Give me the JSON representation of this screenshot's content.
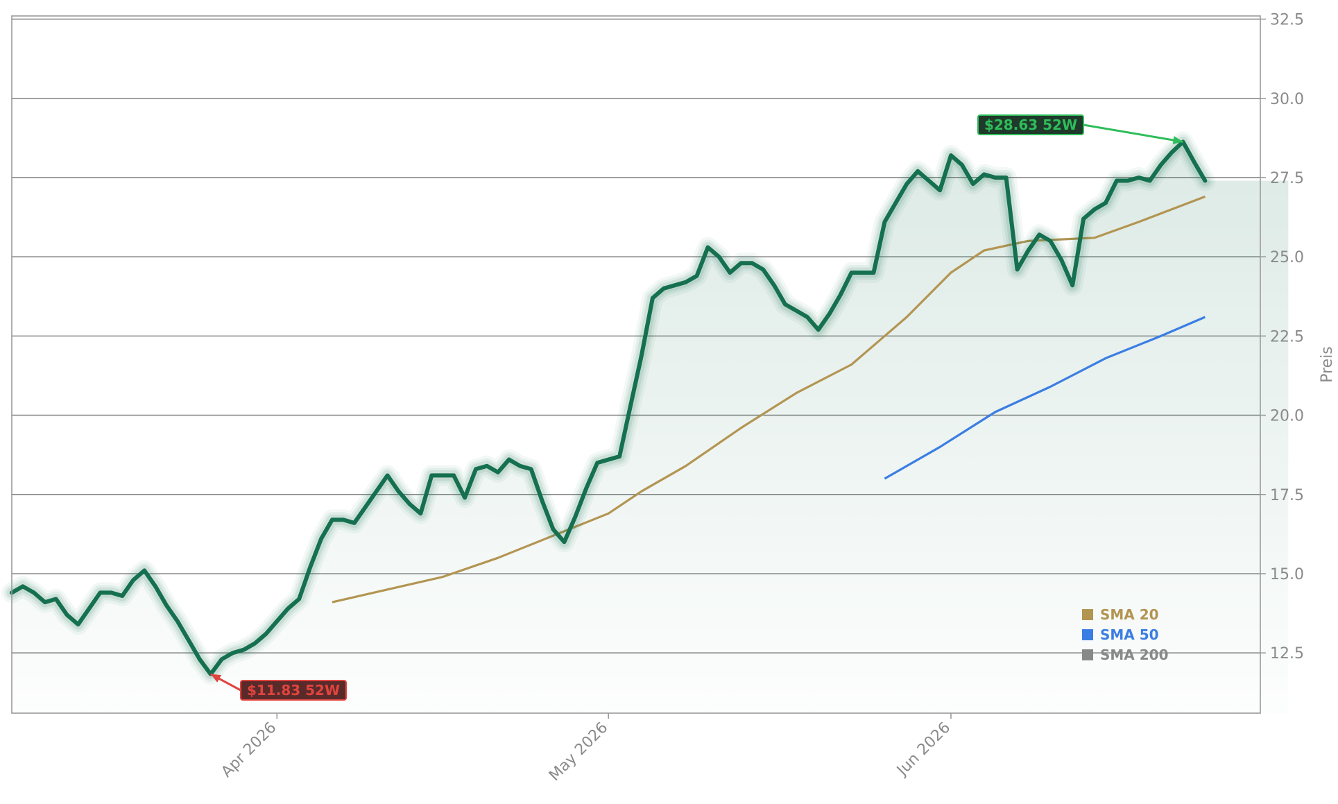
{
  "chart_data": {
    "type": "line",
    "ylabel": "Preis",
    "ylim": [
      10.6,
      32.6
    ],
    "xlim": [
      "2026-03-08",
      "2026-06-29"
    ],
    "y_ticks": [
      12.5,
      15.0,
      17.5,
      20.0,
      22.5,
      25.0,
      27.5,
      30.0,
      32.5
    ],
    "y_tick_labels": [
      "12.5",
      "15.0",
      "17.5",
      "20.0",
      "22.5",
      "25.0",
      "27.5",
      "30.0",
      "32.5"
    ],
    "x_ticks": [
      "2026-04-01",
      "2026-05-01",
      "2026-06-01"
    ],
    "x_tick_labels": [
      "Apr 2026",
      "May 2026",
      "Jun 2026"
    ],
    "grid": "horizontal",
    "legend_position": "bottom-right",
    "colors": {
      "price": "#15704f",
      "sma20": "#b39552",
      "sma50": "#3b7ee3",
      "sma200": "#888888",
      "high": "#2ebd5a",
      "low": "#e0443e"
    },
    "price_series": {
      "x": [
        "2026-03-08",
        "2026-03-09",
        "2026-03-10",
        "2026-03-11",
        "2026-03-12",
        "2026-03-13",
        "2026-03-14",
        "2026-03-15",
        "2026-03-16",
        "2026-03-17",
        "2026-03-18",
        "2026-03-19",
        "2026-03-20",
        "2026-03-21",
        "2026-03-22",
        "2026-03-23",
        "2026-03-24",
        "2026-03-25",
        "2026-03-26",
        "2026-03-27",
        "2026-03-28",
        "2026-03-29",
        "2026-03-30",
        "2026-03-31",
        "2026-04-01",
        "2026-04-02",
        "2026-04-03",
        "2026-04-04",
        "2026-04-05",
        "2026-04-06",
        "2026-04-07",
        "2026-04-08",
        "2026-04-09",
        "2026-04-10",
        "2026-04-11",
        "2026-04-12",
        "2026-04-13",
        "2026-04-14",
        "2026-04-15",
        "2026-04-16",
        "2026-04-17",
        "2026-04-18",
        "2026-04-19",
        "2026-04-20",
        "2026-04-21",
        "2026-04-22",
        "2026-04-23",
        "2026-04-24",
        "2026-04-25",
        "2026-04-26",
        "2026-04-27",
        "2026-04-28",
        "2026-04-29",
        "2026-04-30",
        "2026-05-01",
        "2026-05-02",
        "2026-05-03",
        "2026-05-04",
        "2026-05-05",
        "2026-05-06",
        "2026-05-07",
        "2026-05-08",
        "2026-05-09",
        "2026-05-10",
        "2026-05-11",
        "2026-05-12",
        "2026-05-13",
        "2026-05-14",
        "2026-05-15",
        "2026-05-16",
        "2026-05-17",
        "2026-05-18",
        "2026-05-19",
        "2026-05-20",
        "2026-05-21",
        "2026-05-22",
        "2026-05-23",
        "2026-05-24",
        "2026-05-25",
        "2026-05-26",
        "2026-05-27",
        "2026-05-28",
        "2026-05-29",
        "2026-05-30",
        "2026-05-31",
        "2026-06-01",
        "2026-06-02",
        "2026-06-03",
        "2026-06-04",
        "2026-06-05",
        "2026-06-06",
        "2026-06-07",
        "2026-06-08",
        "2026-06-09",
        "2026-06-10",
        "2026-06-11",
        "2026-06-12",
        "2026-06-13",
        "2026-06-14",
        "2026-06-15",
        "2026-06-16",
        "2026-06-17",
        "2026-06-18",
        "2026-06-19",
        "2026-06-20",
        "2026-06-21",
        "2026-06-22",
        "2026-06-23",
        "2026-06-24"
      ],
      "values": [
        14.4,
        14.6,
        14.4,
        14.1,
        14.2,
        13.7,
        13.4,
        13.9,
        14.4,
        14.4,
        14.3,
        14.8,
        15.1,
        14.6,
        14.0,
        13.5,
        12.9,
        12.3,
        11.83,
        12.3,
        12.5,
        12.6,
        12.8,
        13.1,
        13.5,
        13.9,
        14.2,
        15.2,
        16.1,
        16.7,
        16.7,
        16.6,
        17.1,
        17.6,
        18.1,
        17.6,
        17.2,
        16.9,
        18.1,
        18.1,
        18.1,
        17.4,
        18.3,
        18.4,
        18.2,
        18.6,
        18.4,
        18.3,
        17.3,
        16.4,
        16.0,
        16.8,
        17.7,
        18.5,
        18.6,
        18.7,
        20.3,
        21.9,
        23.7,
        24.0,
        24.1,
        24.2,
        24.4,
        25.3,
        25.0,
        24.5,
        24.8,
        24.8,
        24.6,
        24.1,
        23.5,
        23.3,
        23.1,
        22.7,
        23.2,
        23.8,
        24.5,
        24.5,
        24.5,
        26.1,
        26.7,
        27.3,
        27.7,
        27.4,
        27.1,
        28.2,
        27.9,
        27.3,
        27.6,
        27.5,
        27.5,
        24.6,
        25.2,
        25.7,
        25.5,
        24.9,
        24.1,
        26.2,
        26.5,
        26.7,
        27.4,
        27.4,
        27.5,
        27.4,
        27.9,
        28.3,
        28.63,
        28.0,
        27.4
      ]
    },
    "sma20": {
      "x": [
        "2026-04-06",
        "2026-04-11",
        "2026-04-16",
        "2026-04-21",
        "2026-04-26",
        "2026-05-01",
        "2026-05-04",
        "2026-05-08",
        "2026-05-13",
        "2026-05-18",
        "2026-05-23",
        "2026-05-28",
        "2026-06-01",
        "2026-06-04",
        "2026-06-08",
        "2026-06-14",
        "2026-06-18",
        "2026-06-24"
      ],
      "values": [
        14.1,
        14.5,
        14.9,
        15.5,
        16.2,
        16.9,
        17.6,
        18.4,
        19.6,
        20.7,
        21.6,
        23.1,
        24.5,
        25.2,
        25.5,
        25.6,
        26.1,
        26.9
      ]
    },
    "sma50": {
      "x": [
        "2026-05-26",
        "2026-05-31",
        "2026-06-05",
        "2026-06-10",
        "2026-06-15",
        "2026-06-20",
        "2026-06-24"
      ],
      "values": [
        18.0,
        19.0,
        20.1,
        20.9,
        21.8,
        22.5,
        23.1
      ]
    },
    "annotations": [
      {
        "label": "$28.63 52W",
        "kind": "high",
        "x": "2026-06-22",
        "y": 28.63
      },
      {
        "label": "$11.83 52W",
        "kind": "low",
        "x": "2026-03-26",
        "y": 11.83
      }
    ],
    "legend": [
      {
        "label": "SMA 20",
        "color_key": "sma20"
      },
      {
        "label": "SMA 50",
        "color_key": "sma50"
      },
      {
        "label": "SMA 200",
        "color_key": "sma200"
      }
    ]
  }
}
